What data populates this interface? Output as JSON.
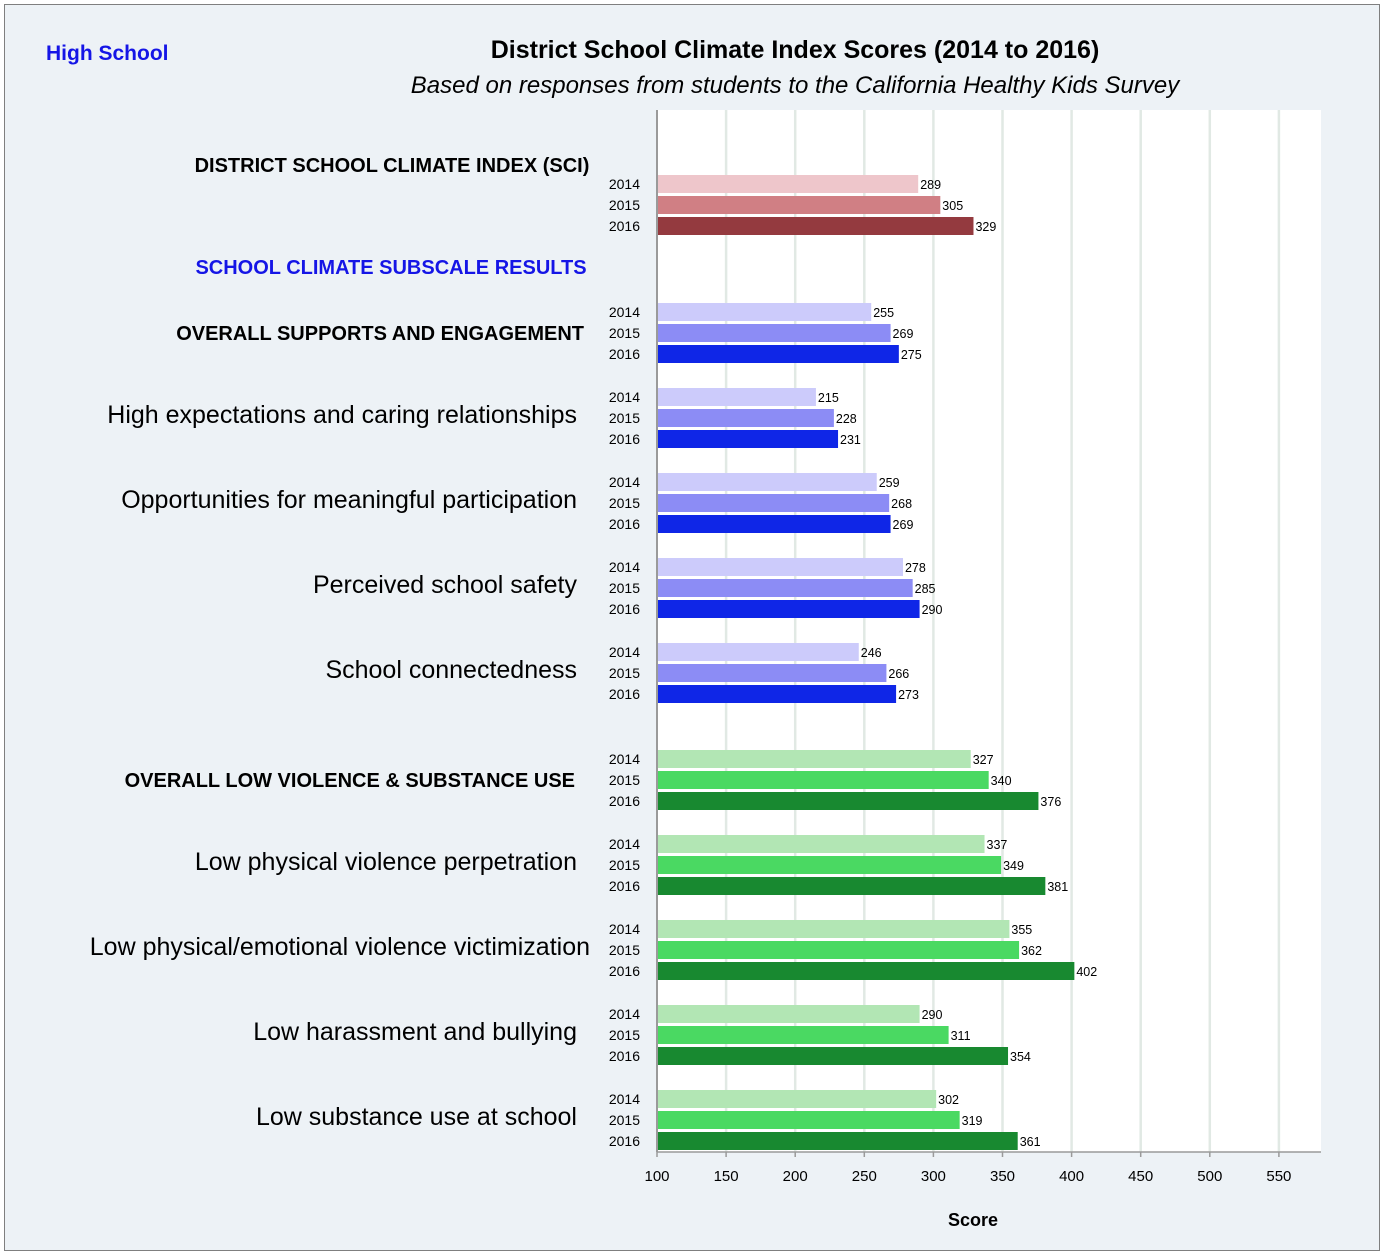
{
  "corner_label": "High School",
  "chart_data": {
    "type": "bar",
    "orientation": "horizontal",
    "title": "District School Climate Index Scores (2014 to 2016)",
    "subtitle": "Based on responses from students to the California Healthy Kids Survey",
    "xlabel": "Score",
    "xlim": [
      100,
      580
    ],
    "xticks": [
      100,
      150,
      200,
      250,
      300,
      350,
      400,
      450,
      500,
      550
    ],
    "grid": true,
    "colors": {
      "sci": [
        "#eec6cb",
        "#d07f84",
        "#943a3f"
      ],
      "supports": [
        "#cccbfb",
        "#8c8cf5",
        "#0f26e7"
      ],
      "violence": [
        "#b2e6b4",
        "#4ad962",
        "#188930"
      ],
      "heading": "#1515e6"
    },
    "section_heading": "SCHOOL CLIMATE SUBSCALE RESULTS",
    "groups": [
      {
        "label": "DISTRICT SCHOOL CLIMATE INDEX (SCI)",
        "bold": true,
        "palette": "sci",
        "years": [
          "2014",
          "2015",
          "2016"
        ],
        "values": [
          289,
          305,
          329
        ]
      },
      {
        "label": "OVERALL SUPPORTS AND ENGAGEMENT",
        "bold": true,
        "palette": "supports",
        "years": [
          "2014",
          "2015",
          "2016"
        ],
        "values": [
          255,
          269,
          275
        ]
      },
      {
        "label": "High expectations and caring relationships",
        "bold": false,
        "palette": "supports",
        "years": [
          "2014",
          "2015",
          "2016"
        ],
        "values": [
          215,
          228,
          231
        ]
      },
      {
        "label": "Opportunities for meaningful participation",
        "bold": false,
        "palette": "supports",
        "years": [
          "2014",
          "2015",
          "2016"
        ],
        "values": [
          259,
          268,
          269
        ]
      },
      {
        "label": "Perceived school safety",
        "bold": false,
        "palette": "supports",
        "years": [
          "2014",
          "2015",
          "2016"
        ],
        "values": [
          278,
          285,
          290
        ]
      },
      {
        "label": "School connectedness",
        "bold": false,
        "palette": "supports",
        "years": [
          "2014",
          "2015",
          "2016"
        ],
        "values": [
          246,
          266,
          273
        ]
      },
      {
        "label": "OVERALL LOW VIOLENCE & SUBSTANCE USE",
        "bold": true,
        "palette": "violence",
        "years": [
          "2014",
          "2015",
          "2016"
        ],
        "values": [
          327,
          340,
          376
        ]
      },
      {
        "label": "Low physical violence perpetration",
        "bold": false,
        "palette": "violence",
        "years": [
          "2014",
          "2015",
          "2016"
        ],
        "values": [
          337,
          349,
          381
        ]
      },
      {
        "label": "Low physical/emotional violence victimization",
        "bold": false,
        "palette": "violence",
        "years": [
          "2014",
          "2015",
          "2016"
        ],
        "values": [
          355,
          362,
          402
        ]
      },
      {
        "label": "Low harassment and bullying",
        "bold": false,
        "palette": "violence",
        "years": [
          "2014",
          "2015",
          "2016"
        ],
        "values": [
          290,
          311,
          354
        ]
      },
      {
        "label": "Low substance use at school",
        "bold": false,
        "palette": "violence",
        "years": [
          "2014",
          "2015",
          "2016"
        ],
        "values": [
          302,
          319,
          361
        ]
      }
    ]
  }
}
